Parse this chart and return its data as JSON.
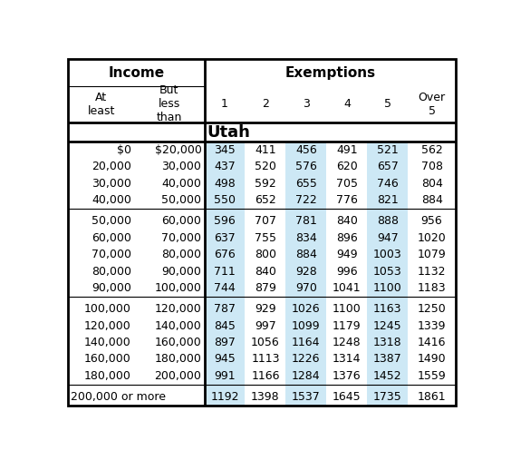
{
  "title_income": "Income",
  "title_exemptions": "Exemptions",
  "state_label": "Utah",
  "rows": [
    [
      "$0",
      "$20,000",
      "345",
      "411",
      "456",
      "491",
      "521",
      "562"
    ],
    [
      "20,000",
      "30,000",
      "437",
      "520",
      "576",
      "620",
      "657",
      "708"
    ],
    [
      "30,000",
      "40,000",
      "498",
      "592",
      "655",
      "705",
      "746",
      "804"
    ],
    [
      "40,000",
      "50,000",
      "550",
      "652",
      "722",
      "776",
      "821",
      "884"
    ],
    [
      "50,000",
      "60,000",
      "596",
      "707",
      "781",
      "840",
      "888",
      "956"
    ],
    [
      "60,000",
      "70,000",
      "637",
      "755",
      "834",
      "896",
      "947",
      "1020"
    ],
    [
      "70,000",
      "80,000",
      "676",
      "800",
      "884",
      "949",
      "1003",
      "1079"
    ],
    [
      "80,000",
      "90,000",
      "711",
      "840",
      "928",
      "996",
      "1053",
      "1132"
    ],
    [
      "90,000",
      "100,000",
      "744",
      "879",
      "970",
      "1041",
      "1100",
      "1183"
    ],
    [
      "100,000",
      "120,000",
      "787",
      "929",
      "1026",
      "1100",
      "1163",
      "1250"
    ],
    [
      "120,000",
      "140,000",
      "845",
      "997",
      "1099",
      "1179",
      "1245",
      "1339"
    ],
    [
      "140,000",
      "160,000",
      "897",
      "1056",
      "1164",
      "1248",
      "1318",
      "1416"
    ],
    [
      "160,000",
      "180,000",
      "945",
      "1113",
      "1226",
      "1314",
      "1387",
      "1490"
    ],
    [
      "180,000",
      "200,000",
      "991",
      "1166",
      "1284",
      "1376",
      "1452",
      "1559"
    ],
    [
      "200,000 or more",
      "",
      "1192",
      "1398",
      "1537",
      "1645",
      "1735",
      "1861"
    ]
  ],
  "group_separators_after": [
    3,
    8,
    13
  ],
  "shade_color": "#cde8f5",
  "bg_color": "#ffffff",
  "border_color": "#000000",
  "fs_header": 11,
  "fs_data": 9,
  "fs_utah": 13
}
